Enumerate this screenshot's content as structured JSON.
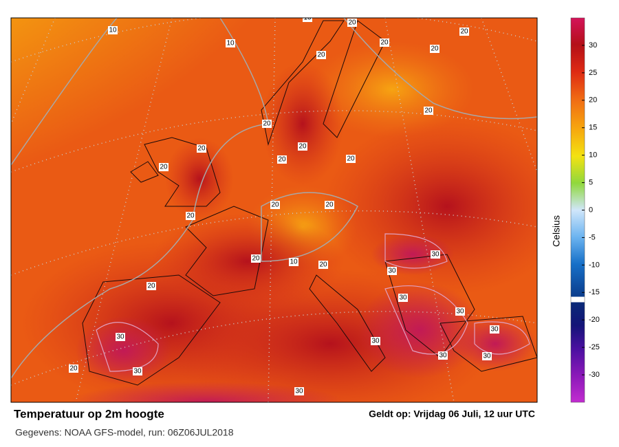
{
  "title": "Temperatuur op 2m hoogte",
  "valid_time": "Geldt op: Vrijdag 06 Juli, 12 uur UTC",
  "source": "Gegevens: NOAA GFS-model, run: 06Z06JUL2018",
  "colorbar": {
    "label": "Celsius",
    "lim": [
      -35,
      35
    ],
    "ticks": [
      30,
      25,
      20,
      15,
      10,
      5,
      0,
      -5,
      -10,
      -15,
      -20,
      -25,
      -30
    ]
  },
  "contour_labels": [
    10,
    10,
    10,
    20,
    20,
    20,
    20,
    20,
    20,
    20,
    20,
    20,
    20,
    20,
    20,
    20,
    20,
    20,
    20,
    10,
    20,
    30,
    30,
    20,
    30,
    30,
    30,
    30,
    30,
    30,
    30,
    20,
    30,
    30
  ]
}
